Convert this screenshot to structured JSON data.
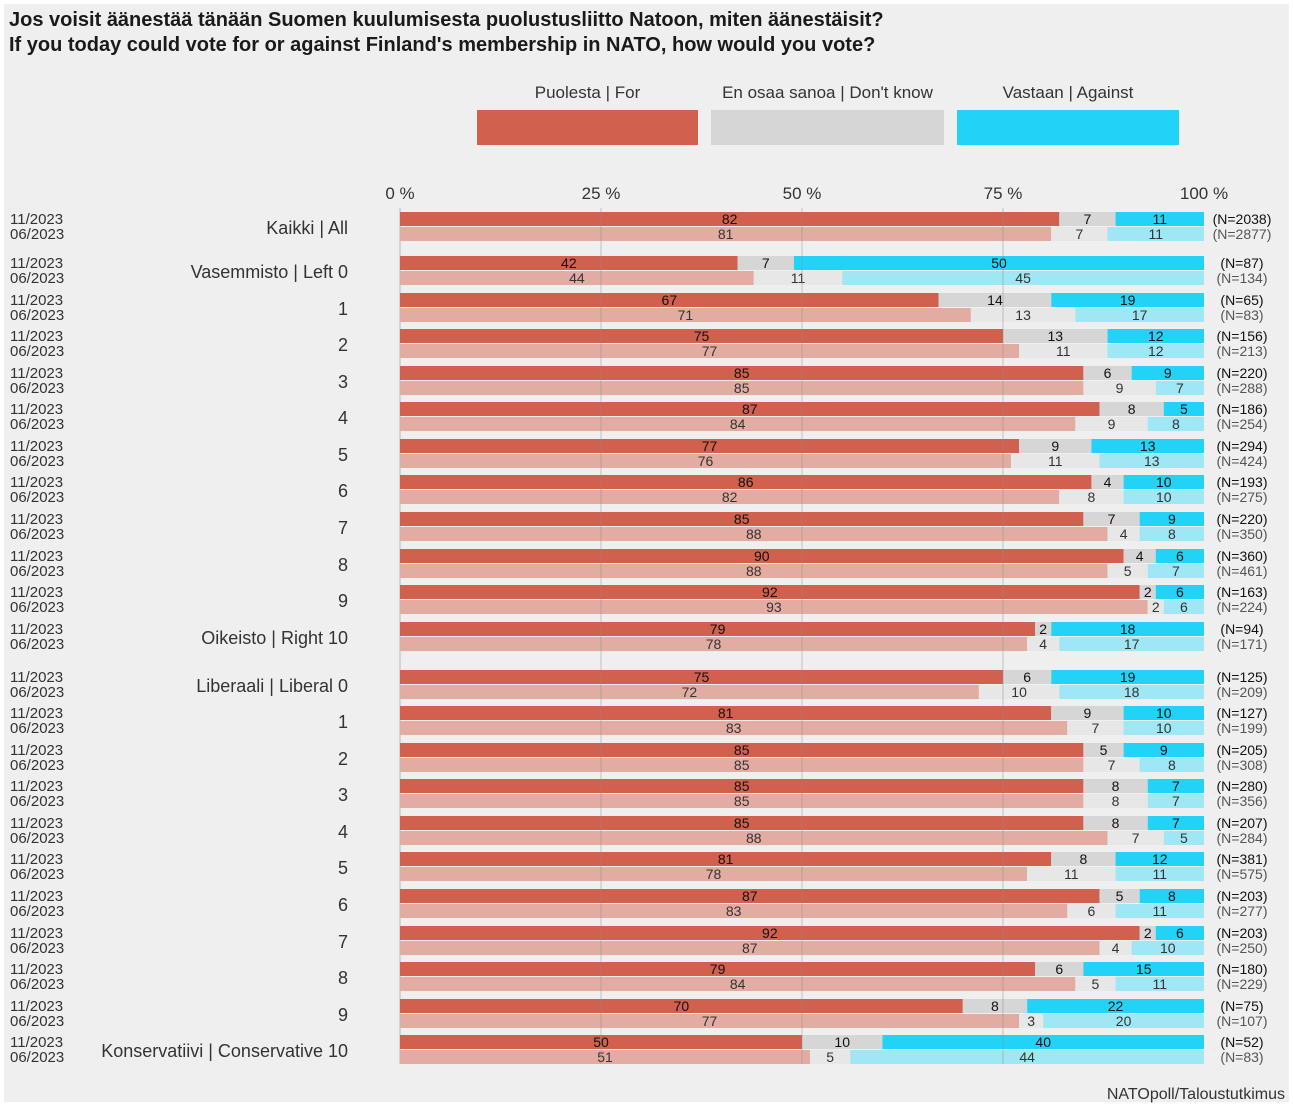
{
  "chart_data": {
    "type": "bar",
    "orientation": "horizontal-stacked-100",
    "title": "Jos voisit äänestää tänään Suomen kuulumisesta puolustusliitto Natoon, miten äänestäisit?",
    "subtitle": "If you today could vote for or against Finland's membership in NATO, how would you vote?",
    "source": "NATOpoll/Taloustutkimus",
    "legend": {
      "position": "top",
      "entries": [
        {
          "label": "Puolesta | For",
          "color": "#d2604e"
        },
        {
          "label": "En osaa sanoa | Don't know",
          "color": "#d6d6d6"
        },
        {
          "label": "Vastaan | Against",
          "color": "#23d3f7"
        }
      ]
    },
    "colors": {
      "for": "#d2604e",
      "for_prev": "#e3aca2",
      "dontknow": "#d6d6d6",
      "dontknow_prev": "#e7e7e7",
      "against": "#23d3f7",
      "against_prev": "#9fe7f4",
      "panel": "#efefef"
    },
    "xaxis": {
      "ticks": [
        "0 %",
        "25 %",
        "50 %",
        "75 %",
        "100 %"
      ],
      "range": [
        0,
        100
      ],
      "gridlines": true
    },
    "periods": [
      "11/2023",
      "06/2023"
    ],
    "series": [
      {
        "name": "Puolesta | For"
      },
      {
        "name": "En osaa sanoa | Don't know"
      },
      {
        "name": "Vastaan | Against"
      }
    ],
    "groups": [
      {
        "label": "Kaikki | All",
        "rows": [
          {
            "for": 82,
            "dk": 7,
            "against": 11,
            "n": "(N=2038)"
          },
          {
            "for": 81,
            "dk": 7,
            "against": 11,
            "n": "(N=2877)"
          }
        ]
      },
      {
        "label": "Vasemmisto | Left 0",
        "rows": [
          {
            "for": 42,
            "dk": 7,
            "against": 50,
            "n": "(N=87)"
          },
          {
            "for": 44,
            "dk": 11,
            "against": 45,
            "n": "(N=134)"
          }
        ]
      },
      {
        "label": "1",
        "rows": [
          {
            "for": 67,
            "dk": 14,
            "against": 19,
            "n": "(N=65)"
          },
          {
            "for": 71,
            "dk": 13,
            "against": 17,
            "n": "(N=83)"
          }
        ]
      },
      {
        "label": "2",
        "rows": [
          {
            "for": 75,
            "dk": 13,
            "against": 12,
            "n": "(N=156)"
          },
          {
            "for": 77,
            "dk": 11,
            "against": 12,
            "n": "(N=213)"
          }
        ]
      },
      {
        "label": "3",
        "rows": [
          {
            "for": 85,
            "dk": 6,
            "against": 9,
            "n": "(N=220)"
          },
          {
            "for": 85,
            "dk": 9,
            "against": 7,
            "n": "(N=288)"
          }
        ]
      },
      {
        "label": "4",
        "rows": [
          {
            "for": 87,
            "dk": 8,
            "against": 5,
            "n": "(N=186)"
          },
          {
            "for": 84,
            "dk": 9,
            "against": 8,
            "n": "(N=254)"
          }
        ]
      },
      {
        "label": "5",
        "rows": [
          {
            "for": 77,
            "dk": 9,
            "against": 13,
            "n": "(N=294)"
          },
          {
            "for": 76,
            "dk": 11,
            "against": 13,
            "n": "(N=424)"
          }
        ]
      },
      {
        "label": "6",
        "rows": [
          {
            "for": 86,
            "dk": 4,
            "against": 10,
            "n": "(N=193)"
          },
          {
            "for": 82,
            "dk": 8,
            "against": 10,
            "n": "(N=275)"
          }
        ]
      },
      {
        "label": "7",
        "rows": [
          {
            "for": 85,
            "dk": 7,
            "against": 9,
            "n": "(N=220)"
          },
          {
            "for": 88,
            "dk": 4,
            "against": 8,
            "n": "(N=350)"
          }
        ]
      },
      {
        "label": "8",
        "rows": [
          {
            "for": 90,
            "dk": 4,
            "against": 6,
            "n": "(N=360)"
          },
          {
            "for": 88,
            "dk": 5,
            "against": 7,
            "n": "(N=461)"
          }
        ]
      },
      {
        "label": "9",
        "rows": [
          {
            "for": 92,
            "dk": 2,
            "against": 6,
            "n": "(N=163)"
          },
          {
            "for": 93,
            "dk": 2,
            "against": 6,
            "n": "(N=224)"
          }
        ]
      },
      {
        "label": "Oikeisto | Right 10",
        "rows": [
          {
            "for": 79,
            "dk": 2,
            "against": 18,
            "n": "(N=94)"
          },
          {
            "for": 78,
            "dk": 4,
            "against": 17,
            "n": "(N=171)"
          }
        ]
      },
      {
        "label": "Liberaali | Liberal 0",
        "rows": [
          {
            "for": 75,
            "dk": 6,
            "against": 19,
            "n": "(N=125)"
          },
          {
            "for": 72,
            "dk": 10,
            "against": 18,
            "n": "(N=209)"
          }
        ]
      },
      {
        "label": "1",
        "rows": [
          {
            "for": 81,
            "dk": 9,
            "against": 10,
            "n": "(N=127)"
          },
          {
            "for": 83,
            "dk": 7,
            "against": 10,
            "n": "(N=199)"
          }
        ]
      },
      {
        "label": "2",
        "rows": [
          {
            "for": 85,
            "dk": 5,
            "against": 9,
            "n": "(N=205)"
          },
          {
            "for": 85,
            "dk": 7,
            "against": 8,
            "n": "(N=308)"
          }
        ]
      },
      {
        "label": "3",
        "rows": [
          {
            "for": 85,
            "dk": 8,
            "against": 7,
            "n": "(N=280)"
          },
          {
            "for": 85,
            "dk": 8,
            "against": 7,
            "n": "(N=356)"
          }
        ]
      },
      {
        "label": "4",
        "rows": [
          {
            "for": 85,
            "dk": 8,
            "against": 7,
            "n": "(N=207)"
          },
          {
            "for": 88,
            "dk": 7,
            "against": 5,
            "n": "(N=284)"
          }
        ]
      },
      {
        "label": "5",
        "rows": [
          {
            "for": 81,
            "dk": 8,
            "against": 12,
            "n": "(N=381)"
          },
          {
            "for": 78,
            "dk": 11,
            "against": 11,
            "n": "(N=575)"
          }
        ]
      },
      {
        "label": "6",
        "rows": [
          {
            "for": 87,
            "dk": 5,
            "against": 8,
            "n": "(N=203)"
          },
          {
            "for": 83,
            "dk": 6,
            "against": 11,
            "n": "(N=277)"
          }
        ]
      },
      {
        "label": "7",
        "rows": [
          {
            "for": 92,
            "dk": 2,
            "against": 6,
            "n": "(N=203)"
          },
          {
            "for": 87,
            "dk": 4,
            "against": 10,
            "n": "(N=250)"
          }
        ]
      },
      {
        "label": "8",
        "rows": [
          {
            "for": 79,
            "dk": 6,
            "against": 15,
            "n": "(N=180)"
          },
          {
            "for": 84,
            "dk": 5,
            "against": 11,
            "n": "(N=229)"
          }
        ]
      },
      {
        "label": "9",
        "rows": [
          {
            "for": 70,
            "dk": 8,
            "against": 22,
            "n": "(N=75)"
          },
          {
            "for": 77,
            "dk": 3,
            "against": 20,
            "n": "(N=107)"
          }
        ]
      },
      {
        "label": "Konservatiivi | Conservative 10",
        "rows": [
          {
            "for": 50,
            "dk": 10,
            "against": 40,
            "n": "(N=52)"
          },
          {
            "for": 51,
            "dk": 5,
            "against": 44,
            "n": "(N=83)"
          }
        ]
      }
    ]
  }
}
